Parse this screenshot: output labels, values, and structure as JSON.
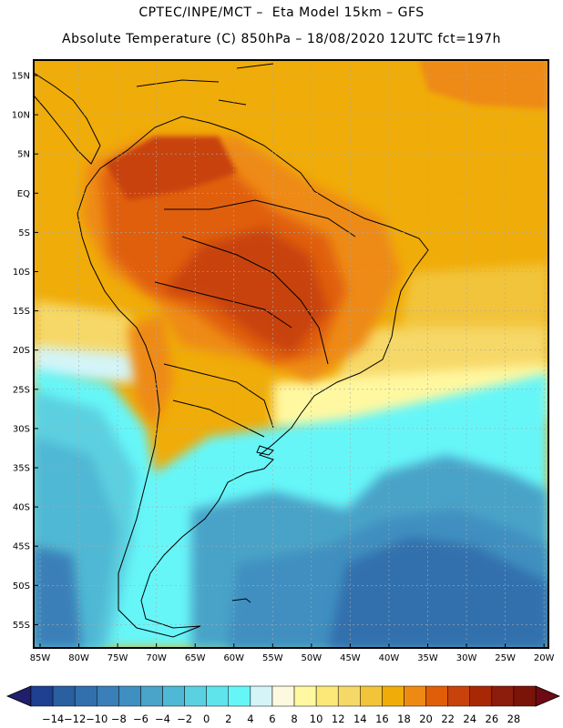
{
  "header": {
    "line1": "CPTEC/INPE/MCT –  Eta Model 15km – GFS",
    "line2": "Absolute Temperature (C) 850hPa – 18/08/2020 12UTC fct=197h"
  },
  "axes": {
    "lat_labels": [
      "15N",
      "10N",
      "5N",
      "EQ",
      "5S",
      "10S",
      "15S",
      "20S",
      "25S",
      "30S",
      "35S",
      "40S",
      "45S",
      "50S",
      "55S"
    ],
    "lon_labels": [
      "85W",
      "80W",
      "75W",
      "70W",
      "65W",
      "60W",
      "55W",
      "50W",
      "45W",
      "40W",
      "35W",
      "30W",
      "25W",
      "20W"
    ]
  },
  "colorbar": {
    "labels": [
      "-14",
      "-12",
      "-10",
      "-8",
      "-6",
      "-4",
      "-2",
      "0",
      "2",
      "4",
      "6",
      "8",
      "10",
      "12",
      "14",
      "16",
      "18",
      "20",
      "22",
      "24",
      "26",
      "28"
    ],
    "colors": [
      "#1f3f8f",
      "#2a5fa0",
      "#3270ad",
      "#3a7fb8",
      "#3f8fc0",
      "#4aa3c8",
      "#4fb8d4",
      "#5bd0e0",
      "#60e4ec",
      "#66f6f8",
      "#d4f4f8",
      "#fdf8e0",
      "#fff8a0",
      "#fbe878",
      "#f6d868",
      "#f2c43a",
      "#f0ac08",
      "#ee8a14",
      "#e05e0a",
      "#c8420c",
      "#a82806",
      "#8c1c0c",
      "#7a1408"
    ],
    "endpoint_colors": {
      "low": "#1f1f6e",
      "high": "#6e0a14"
    }
  },
  "palette": {
    "ocean_north": "#f0ac08",
    "ocean_mid": "#f6d868",
    "ocean_cool": "#66f6f8",
    "ocean_cold": "#3a7fb8",
    "land_hot": "#e05e0a",
    "land_hotter": "#c8420c",
    "coast": "#000000",
    "grid": "#aaaaaa"
  }
}
